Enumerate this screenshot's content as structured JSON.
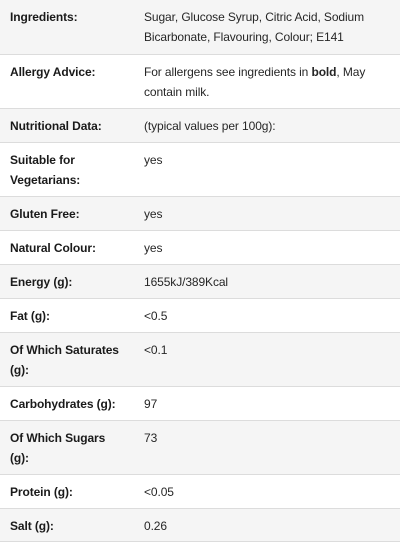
{
  "rows": [
    {
      "label": "Ingredients:",
      "value": "Sugar, Glucose Syrup, Citric Acid, Sodium Bicarbonate, Flavouring, Colour; E141"
    },
    {
      "label": "Allergy Advice:",
      "value_before": "For allergens see ingredients in ",
      "value_bold": "bold",
      "value_after": ", May contain milk."
    },
    {
      "label": "Nutritional Data:",
      "value": "(typical values per 100g):"
    },
    {
      "label": "Suitable for Vegetarians:",
      "value": "yes"
    },
    {
      "label": "Gluten Free:",
      "value": "yes"
    },
    {
      "label": "Natural Colour:",
      "value": "yes"
    },
    {
      "label": "Energy (g):",
      "value": "1655kJ/389Kcal"
    },
    {
      "label": "Fat (g):",
      "value": "<0.5"
    },
    {
      "label": "Of Which Saturates (g):",
      "value": "<0.1"
    },
    {
      "label": "Carbohydrates (g):",
      "value": "97"
    },
    {
      "label": "Of Which Sugars (g):",
      "value": "73"
    },
    {
      "label": "Protein (g):",
      "value": "<0.05"
    },
    {
      "label": "Salt (g):",
      "value": "0.26"
    }
  ],
  "colors": {
    "zebra": "#f5f5f5",
    "divider": "#dcdcdc",
    "text": "#222222"
  }
}
